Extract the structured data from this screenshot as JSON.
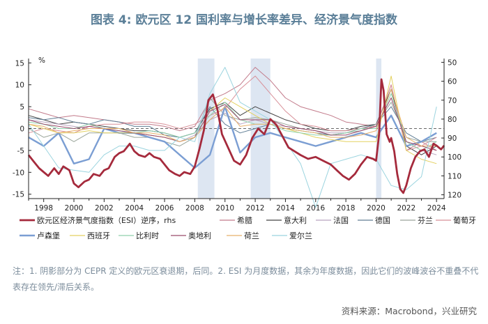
{
  "header": {
    "figure_label": "图表 4:",
    "title_text": "欧元区 12 国利率与增长率差异、经济景气度指数"
  },
  "note": "注：1. 阴影部分为 CEPR 定义的欧元区衰退期，后同。2. ESI 为月度数据，其余为年度数据，因此它们的波峰波谷不重叠不代表存在领先/滞后关系。",
  "source": "资料来源：Macrobond，兴业研究",
  "chart_data": {
    "type": "line",
    "left_unit": "%",
    "x_ticks": [
      1998,
      2000,
      2002,
      2004,
      2006,
      2008,
      2010,
      2012,
      2014,
      2016,
      2018,
      2020,
      2022,
      2024
    ],
    "xlim": [
      1997,
      2024.5
    ],
    "ylim_left": [
      -16,
      16
    ],
    "yticks_left": [
      15,
      10,
      5,
      0,
      -5,
      -10,
      -15
    ],
    "ylim_right_inverted": [
      48,
      122
    ],
    "yticks_right": [
      50,
      60,
      70,
      80,
      90,
      100,
      110,
      120
    ],
    "zero_line": "dashed",
    "recessions": [
      [
        2008.2,
        2009.3
      ],
      [
        2011.7,
        2013.0
      ],
      [
        2020.0,
        2020.35
      ]
    ],
    "x_years": [
      1997,
      1998,
      1999,
      2000,
      2001,
      2002,
      2003,
      2004,
      2005,
      2006,
      2007,
      2008,
      2009,
      2010,
      2011,
      2012,
      2013,
      2014,
      2015,
      2016,
      2017,
      2018,
      2019,
      2020,
      2021,
      2022,
      2023,
      2024
    ],
    "esi": {
      "name": "欧元区经济景气度指数（ESI）逆序，rhs",
      "color": "#a52a3c",
      "points": [
        [
          1997.0,
          99
        ],
        [
          1997.3,
          102
        ],
        [
          1997.7,
          106
        ],
        [
          1998.0,
          108
        ],
        [
          1998.3,
          110
        ],
        [
          1998.7,
          106
        ],
        [
          1999.0,
          109
        ],
        [
          1999.3,
          105
        ],
        [
          1999.7,
          107
        ],
        [
          2000.0,
          114
        ],
        [
          2000.3,
          116
        ],
        [
          2000.7,
          113
        ],
        [
          2001.0,
          112
        ],
        [
          2001.3,
          109
        ],
        [
          2001.7,
          110
        ],
        [
          2002.0,
          107
        ],
        [
          2002.3,
          106
        ],
        [
          2002.7,
          100
        ],
        [
          2003.0,
          98
        ],
        [
          2003.3,
          97
        ],
        [
          2003.7,
          93
        ],
        [
          2004.0,
          97
        ],
        [
          2004.3,
          99
        ],
        [
          2004.7,
          100
        ],
        [
          2005.0,
          98
        ],
        [
          2005.3,
          100
        ],
        [
          2005.7,
          101
        ],
        [
          2006.0,
          104
        ],
        [
          2006.3,
          107
        ],
        [
          2006.7,
          109
        ],
        [
          2007.0,
          110
        ],
        [
          2007.3,
          108
        ],
        [
          2007.7,
          109
        ],
        [
          2008.0,
          105
        ],
        [
          2008.3,
          96
        ],
        [
          2008.6,
          86
        ],
        [
          2008.9,
          70
        ],
        [
          2009.2,
          67
        ],
        [
          2009.5,
          75
        ],
        [
          2009.8,
          88
        ],
        [
          2010.2,
          95
        ],
        [
          2010.6,
          102
        ],
        [
          2011.0,
          104
        ],
        [
          2011.4,
          99
        ],
        [
          2011.8,
          90
        ],
        [
          2012.2,
          85
        ],
        [
          2012.6,
          88
        ],
        [
          2013.0,
          80
        ],
        [
          2013.4,
          83
        ],
        [
          2013.8,
          89
        ],
        [
          2014.2,
          95
        ],
        [
          2014.6,
          97
        ],
        [
          2015.0,
          99
        ],
        [
          2015.5,
          101
        ],
        [
          2016.0,
          100
        ],
        [
          2016.5,
          102
        ],
        [
          2017.0,
          104
        ],
        [
          2017.4,
          107
        ],
        [
          2017.8,
          110
        ],
        [
          2018.2,
          112
        ],
        [
          2018.6,
          109
        ],
        [
          2019.0,
          104
        ],
        [
          2019.4,
          100
        ],
        [
          2019.8,
          101
        ],
        [
          2020.0,
          102
        ],
        [
          2020.2,
          88
        ],
        [
          2020.35,
          59
        ],
        [
          2020.5,
          65
        ],
        [
          2020.7,
          88
        ],
        [
          2020.9,
          92
        ],
        [
          2021.0,
          90
        ],
        [
          2021.2,
          97
        ],
        [
          2021.4,
          109
        ],
        [
          2021.6,
          117
        ],
        [
          2021.8,
          119
        ],
        [
          2022.0,
          115
        ],
        [
          2022.3,
          106
        ],
        [
          2022.6,
          100
        ],
        [
          2022.9,
          97
        ],
        [
          2023.2,
          96
        ],
        [
          2023.5,
          100
        ],
        [
          2023.8,
          93
        ],
        [
          2024.0,
          94
        ],
        [
          2024.3,
          96
        ],
        [
          2024.5,
          94
        ]
      ]
    },
    "series": [
      {
        "name": "希腊",
        "color": "#c27a8a",
        "values": [
          4.5,
          3.5,
          2.5,
          3,
          2.5,
          2,
          1.5,
          1,
          1,
          0.5,
          -0.5,
          0.5,
          6.5,
          8,
          10,
          14,
          11,
          7,
          5,
          4,
          3,
          1.5,
          1,
          0.5,
          10,
          -5,
          -3,
          -5
        ]
      },
      {
        "name": "意大利",
        "color": "#444444",
        "values": [
          3,
          2,
          1,
          1.5,
          1,
          0.5,
          0,
          -0.5,
          -0.5,
          -1,
          -2,
          -1,
          4.5,
          6,
          3,
          5,
          3.5,
          2,
          1,
          0,
          -0.5,
          -0.5,
          0.5,
          1,
          9,
          -4,
          -6,
          -4
        ]
      },
      {
        "name": "法国",
        "color": "#b9a5bf",
        "values": [
          2,
          1.5,
          1,
          0.5,
          0,
          0,
          -1,
          -1,
          -1.5,
          -2,
          -3,
          -1.5,
          2,
          3.5,
          1,
          2,
          1,
          0.5,
          0,
          -0.5,
          -1,
          -1,
          0,
          0.5,
          7,
          -3,
          -5,
          -6
        ]
      },
      {
        "name": "德国",
        "color": "#607e95",
        "values": [
          2.5,
          2,
          2.5,
          1.5,
          1,
          2,
          1.5,
          0.5,
          0.5,
          -1.5,
          -2,
          -1,
          5,
          1,
          -1,
          0,
          1,
          0,
          -0.5,
          -1,
          -1.5,
          -1,
          0,
          1,
          5,
          -1,
          -3,
          -2
        ]
      },
      {
        "name": "芬兰",
        "color": "#9aa59a",
        "values": [
          0,
          -2,
          -1,
          -3,
          -1,
          -1,
          -1,
          -2,
          -2,
          -3,
          -4,
          -2,
          7,
          3,
          2,
          2.5,
          2,
          1,
          0,
          -0.5,
          -1.5,
          -1,
          -0.5,
          1,
          6,
          -2,
          -3,
          -3
        ]
      },
      {
        "name": "葡萄牙",
        "color": "#d88f98",
        "values": [
          -1,
          0,
          -0.5,
          -1,
          0.5,
          1,
          1,
          1.5,
          1.5,
          1,
          0,
          1,
          3,
          4.5,
          9,
          12,
          8,
          4,
          1,
          0.5,
          -0.5,
          -0.5,
          0,
          0.5,
          10,
          -5,
          -4,
          -2
        ]
      },
      {
        "name": "卢森堡",
        "color": "#7b9ed3",
        "values": [
          -2,
          -4,
          -1,
          -8,
          -7,
          0,
          -1,
          -1,
          -2,
          -3,
          -6,
          -9,
          -6,
          5,
          -5.5,
          -2,
          -1,
          -2,
          -3,
          -4,
          -3,
          -2,
          -1,
          -2,
          3,
          -4,
          -3,
          -1
        ]
      },
      {
        "name": "西班牙",
        "color": "#e4d160",
        "values": [
          1,
          0,
          -1,
          -1,
          -0.5,
          -1,
          -1,
          -1,
          -1.5,
          -2,
          -3,
          -2,
          4,
          7,
          5,
          3,
          1,
          0,
          -1,
          -2,
          -2.5,
          -3,
          -3,
          -3,
          12,
          -5,
          -7,
          -8
        ]
      },
      {
        "name": "比利时",
        "color": "#8fd1ac",
        "values": [
          1.5,
          1,
          0,
          0,
          1,
          0,
          -0.5,
          -1,
          -0.5,
          -1,
          -2,
          -1,
          3,
          6,
          2,
          1,
          1,
          -0.5,
          -1,
          -1.5,
          -1.5,
          -1,
          0,
          0,
          8,
          -3,
          -5,
          -3
        ]
      },
      {
        "name": "奥地利",
        "color": "#9a4a6a",
        "values": [
          2,
          1,
          0.5,
          0,
          0.5,
          0,
          -0.5,
          -1,
          -1.5,
          -2,
          -3,
          -2,
          4,
          5.5,
          2,
          2,
          2,
          0.5,
          0,
          -0.5,
          -1.5,
          -1.5,
          -0.5,
          0.5,
          7,
          -3,
          -4,
          -5
        ]
      },
      {
        "name": "荷兰",
        "color": "#e8b06a",
        "values": [
          1,
          0.5,
          -1,
          -0.5,
          0,
          0,
          0,
          -1,
          -1,
          -1.5,
          -3,
          -2,
          2,
          5,
          0.5,
          1,
          1,
          0,
          -0.5,
          -1,
          -2,
          -2,
          -1.5,
          -0.5,
          9,
          -2,
          -4,
          -4
        ]
      },
      {
        "name": "爱尔兰",
        "color": "#9bd4df",
        "values": [
          1,
          -4,
          -9,
          -9.5,
          -10,
          -6,
          -4,
          -4,
          -5,
          -5,
          -2,
          -3,
          8,
          14,
          6,
          4,
          2,
          -3,
          -8,
          -18,
          -8,
          -7,
          -6,
          -7,
          -13,
          -14,
          -11,
          5
        ]
      }
    ]
  }
}
